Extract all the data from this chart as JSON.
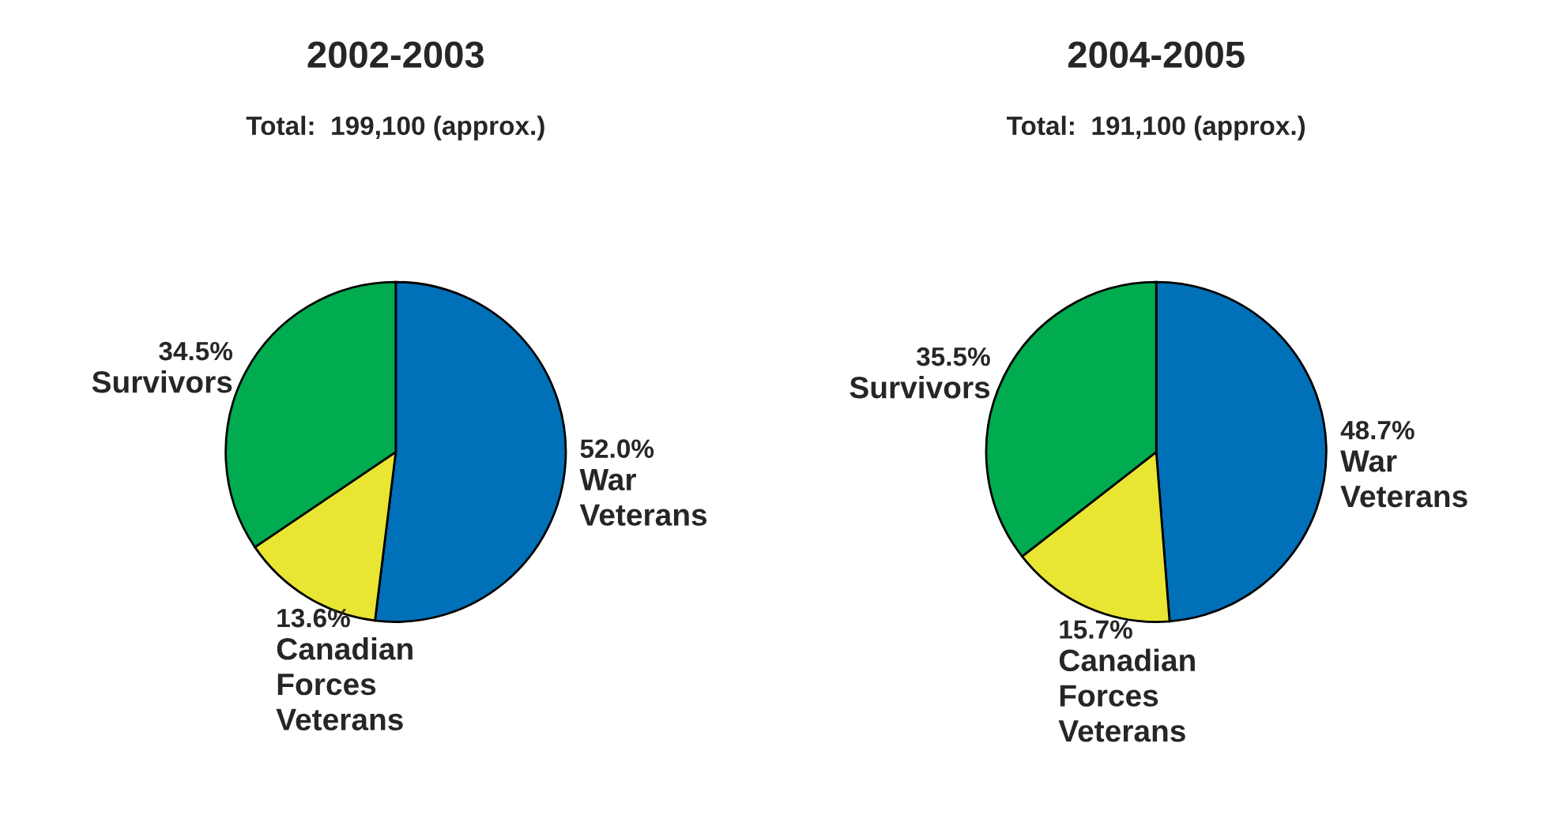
{
  "chart_data": [
    {
      "type": "pie",
      "title": "2002-2003",
      "subtitle": "Total:  199,100 (approx.)",
      "categories": [
        "War\nVeterans",
        "Canadian\nForces\nVeterans",
        "Survivors"
      ],
      "values": [
        52.0,
        13.6,
        34.5
      ],
      "value_labels": [
        "52.0%",
        "13.6%",
        "34.5%"
      ],
      "colors": [
        "#0070b8",
        "#e8e633",
        "#00ac4f"
      ]
    },
    {
      "type": "pie",
      "title": "2004-2005",
      "subtitle": "Total:  191,100 (approx.)",
      "categories": [
        "War\nVeterans",
        "Canadian\nForces\nVeterans",
        "Survivors"
      ],
      "values": [
        48.7,
        15.7,
        35.5
      ],
      "value_labels": [
        "48.7%",
        "15.7%",
        "35.5%"
      ],
      "colors": [
        "#0070b8",
        "#e8e633",
        "#00ac4f"
      ]
    }
  ]
}
